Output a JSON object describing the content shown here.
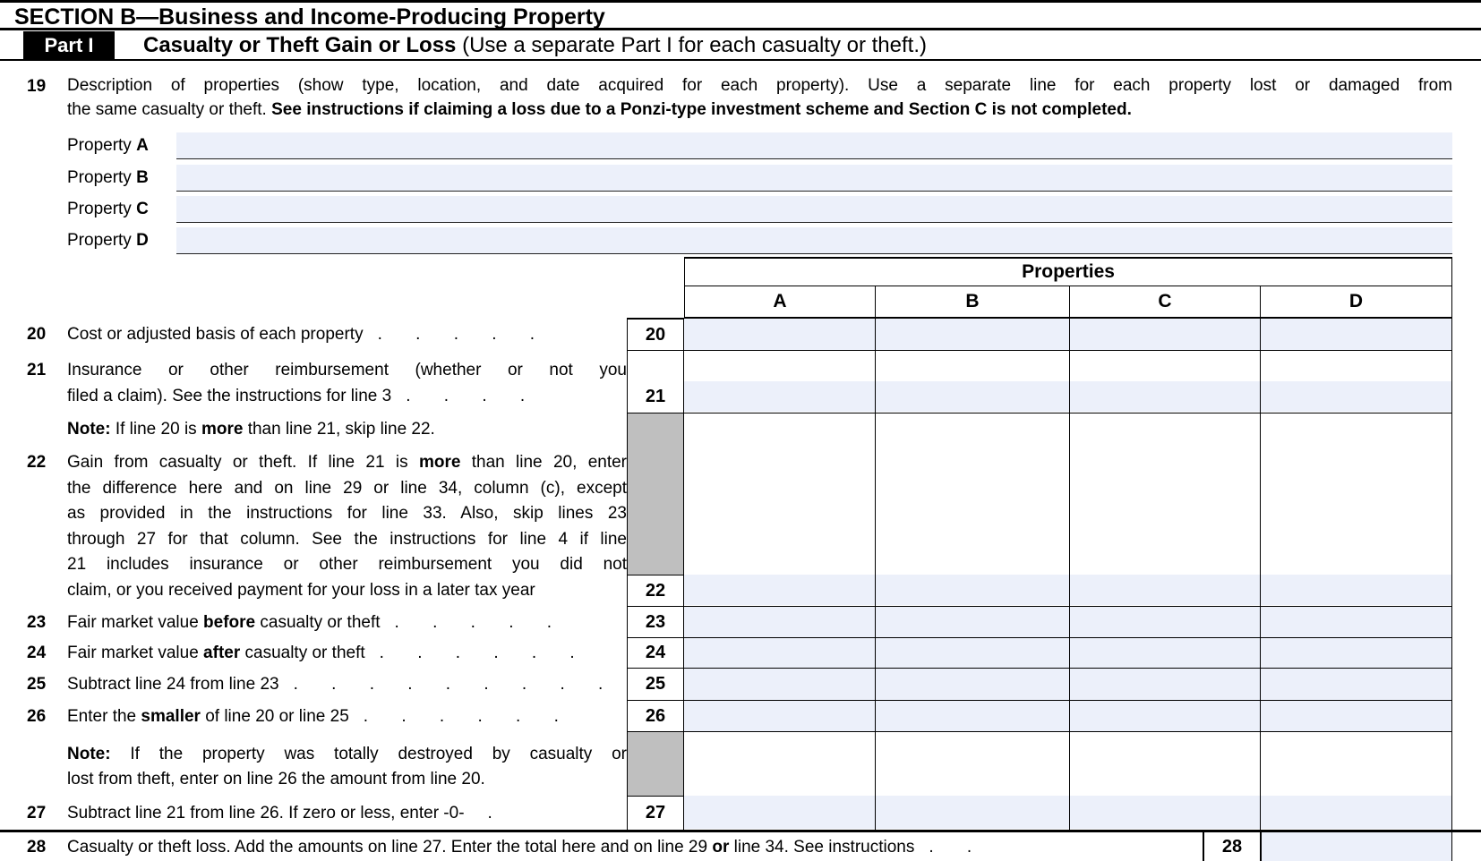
{
  "colors": {
    "field_blue": "#ecf0fa",
    "shade_gray": "#bfbfbf"
  },
  "header": {
    "section_title": "SECTION B—Business and Income-Producing Property",
    "part_label": "Part I",
    "part_title": "Casualty or Theft Gain or Loss",
    "part_subtitle": " (Use a separate Part I for each casualty or theft.)"
  },
  "l19": {
    "number": "19",
    "l1": "Description of properties (show type, location, and date acquired for each property). Use a separate line for each property lost or damaged from",
    "l2a": "the same casualty or theft. ",
    "l2b": "See instructions if claiming a loss due to a Ponzi-type investment scheme and Section C is not completed."
  },
  "props": [
    {
      "label": "Property",
      "letter": "A",
      "value": ""
    },
    {
      "label": "Property",
      "letter": "B",
      "value": ""
    },
    {
      "label": "Property",
      "letter": "C",
      "value": ""
    },
    {
      "label": "Property",
      "letter": "D",
      "value": ""
    }
  ],
  "tbl": {
    "title": "Properties",
    "cols": [
      "A",
      "B",
      "C",
      "D"
    ]
  },
  "l20": {
    "number": "20",
    "text": "Cost or adjusted basis of each property",
    "dots": ". . . . ."
  },
  "l21": {
    "number": "21",
    "l1": "Insurance or other reimbursement (whether or not you",
    "l2": "filed a claim). See the instructions for line 3",
    "dots": ". . . ."
  },
  "note1": {
    "label": "Note:",
    "a": " If line 20 is ",
    "b": "more",
    "c": " than line 21, skip line 22."
  },
  "l22": {
    "number": "22",
    "l1a": "Gain from casualty or theft. If line 21 is ",
    "l1b": "more",
    "l1c": " than line 20, enter",
    "l2": "the difference here and on line 29 or line 34, column (c), except",
    "l3": "as provided in the instructions for line 33. Also, skip lines 23",
    "l4": "through 27 for that column. See the instructions for line 4 if line",
    "l5": "21 includes insurance or other reimbursement you did not",
    "l6": "claim, or you received payment for your loss in a later tax year"
  },
  "l23": {
    "number": "23",
    "a": "Fair market value ",
    "b": "before",
    "c": " casualty or theft",
    "dots": ". . . . ."
  },
  "l24": {
    "number": "24",
    "a": "Fair market value ",
    "b": "after",
    "c": " casualty or theft",
    "dots": ". . . . . ."
  },
  "l25": {
    "number": "25",
    "text": "Subtract line 24 from line 23",
    "dots": ". . . . . . . . ."
  },
  "l26": {
    "number": "26",
    "a": "Enter the ",
    "b": "smaller",
    "c": " of line 20 or line 25",
    "dots": ". . . . . ."
  },
  "note2": {
    "label": "Note:",
    "l1": " If the property was totally destroyed by casualty or",
    "l2": "lost from theft, enter on line 26 the amount from line 20."
  },
  "l27": {
    "number": "27",
    "text": "Subtract line 21 from line 26. If zero or less, enter -0-",
    "dots": "."
  },
  "l28": {
    "number": "28",
    "a": "Casualty or theft loss. Add the amounts on line 27. Enter the total here and on line 29 ",
    "b": "or",
    "c": " line 34. See instructions",
    "dots": ". ."
  }
}
